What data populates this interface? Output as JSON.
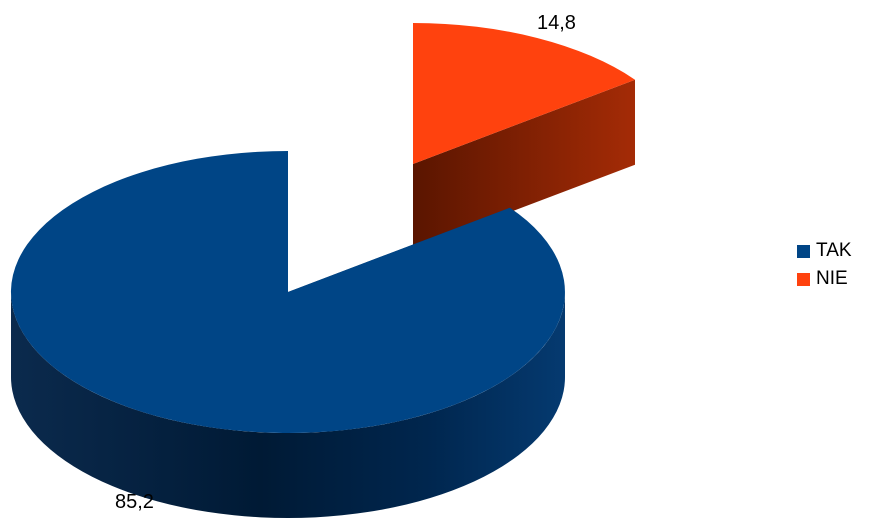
{
  "chart_data": {
    "type": "pie",
    "style": "3d-exploded",
    "title": "",
    "slices": [
      {
        "label": "TAK",
        "value": 85.2,
        "value_label": "85,2",
        "color": "#004586"
      },
      {
        "label": "NIE",
        "value": 14.8,
        "value_label": "14,8",
        "color": "#ff420e"
      }
    ],
    "legend_position": "right"
  }
}
